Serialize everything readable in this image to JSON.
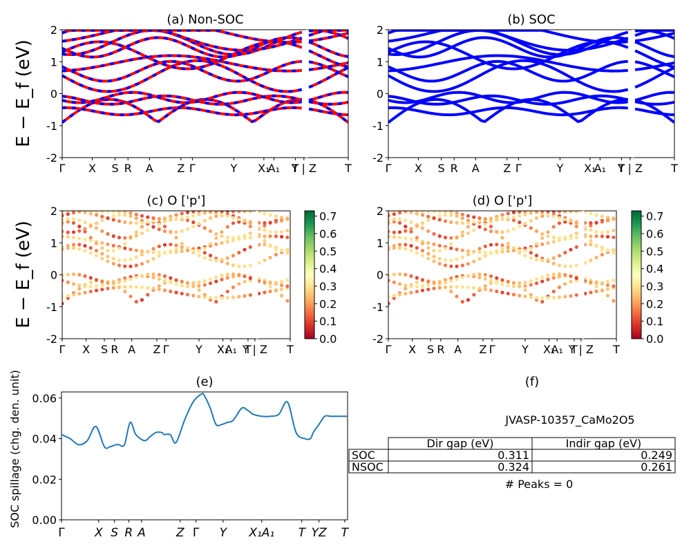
{
  "figure": {
    "ylabel_main": "E − E_f (eV)",
    "ylabel_sub": "f",
    "kpath_labels": [
      "Γ",
      "X",
      "S",
      "R",
      "A",
      "Z",
      "Γ",
      "Y",
      "X₁",
      "A₁",
      "T",
      "Y | Z",
      "T"
    ],
    "spillage_kpath_labels": [
      "Γ",
      "X",
      "S",
      "R",
      "A",
      "Z",
      "Γ",
      "Y",
      "X₁A₁",
      "T",
      "YZ",
      "T"
    ],
    "colorbar_ticks": [
      "0.0",
      "0.1",
      "0.2",
      "0.3",
      "0.4",
      "0.5",
      "0.6",
      "0.7"
    ],
    "colorbar_range": [
      0,
      0.73
    ],
    "colormap": [
      "#a50026",
      "#d73027",
      "#f46d43",
      "#fdae61",
      "#fee08b",
      "#ffffbf",
      "#d9ef8b",
      "#a6d96a",
      "#66bd63",
      "#1a9850",
      "#006837"
    ]
  },
  "chart_data": [
    {
      "id": "a",
      "type": "line",
      "title": "(a) Non-SOC",
      "ylim": [
        -2,
        2
      ],
      "yticks": [
        -2,
        -1,
        0,
        1,
        2
      ],
      "series_colors": [
        "#ff0000",
        "#0000ff"
      ],
      "linestyle": "dashed-overlay"
    },
    {
      "id": "b",
      "type": "line",
      "title": "(b) SOC",
      "ylim": [
        -2,
        2
      ],
      "yticks": [
        -2,
        -1,
        0,
        1,
        2
      ],
      "series_colors": [
        "#0000ff"
      ]
    },
    {
      "id": "c",
      "type": "scatter",
      "title": "(c)  O ['p']",
      "ylim": [
        -2,
        2
      ],
      "yticks": [
        -2,
        -1,
        0,
        1,
        2
      ],
      "colorbar": true
    },
    {
      "id": "d",
      "type": "scatter",
      "title": "(d) O ['p']",
      "ylim": [
        -2,
        2
      ],
      "yticks": [
        -2,
        -1,
        0,
        1,
        2
      ],
      "colorbar": true
    },
    {
      "id": "e",
      "type": "line",
      "title": "(e)",
      "ylabel": "SOC spillage (chg. den. unit)",
      "ylim": [
        0,
        0.063
      ],
      "yticks": [
        "0.00",
        "0.02",
        "0.04",
        "0.06"
      ],
      "color": "#1f77b4",
      "x": [
        0,
        0.03,
        0.06,
        0.09,
        0.12,
        0.15,
        0.17,
        0.19,
        0.2,
        0.22,
        0.24,
        0.26,
        0.29,
        0.31,
        0.33,
        0.35,
        0.36,
        0.38,
        0.4,
        0.43,
        0.46,
        0.49,
        0.5,
        0.52,
        0.54,
        0.56,
        0.58,
        0.6,
        0.63,
        0.65,
        0.67,
        0.7,
        0.73,
        0.76,
        0.79,
        0.82,
        0.85,
        0.87,
        0.88,
        0.9,
        0.92,
        0.94,
        0.96,
        0.98,
        1.0
      ],
      "values": [
        0.042,
        0.04,
        0.037,
        0.039,
        0.046,
        0.036,
        0.036,
        0.037,
        0.037,
        0.037,
        0.048,
        0.042,
        0.039,
        0.041,
        0.043,
        0.043,
        0.042,
        0.042,
        0.038,
        0.049,
        0.058,
        0.062,
        0.061,
        0.055,
        0.047,
        0.047,
        0.048,
        0.049,
        0.055,
        0.054,
        0.052,
        0.051,
        0.051,
        0.052,
        0.058,
        0.043,
        0.04,
        0.04,
        0.043,
        0.047,
        0.051,
        0.051,
        0.051,
        0.051,
        0.051
      ]
    },
    {
      "id": "f",
      "type": "table",
      "title": "(f)",
      "subtitle": "JVASP-10357_CaMo2O5",
      "columns": [
        "Dir gap (eV)",
        "Indir gap (eV)"
      ],
      "rows": [
        {
          "label": "SOC",
          "values": [
            "0.311",
            "0.249"
          ]
        },
        {
          "label": "NSOC",
          "values": [
            "0.324",
            "0.261"
          ]
        }
      ],
      "footer": "# Peaks = 0"
    }
  ]
}
